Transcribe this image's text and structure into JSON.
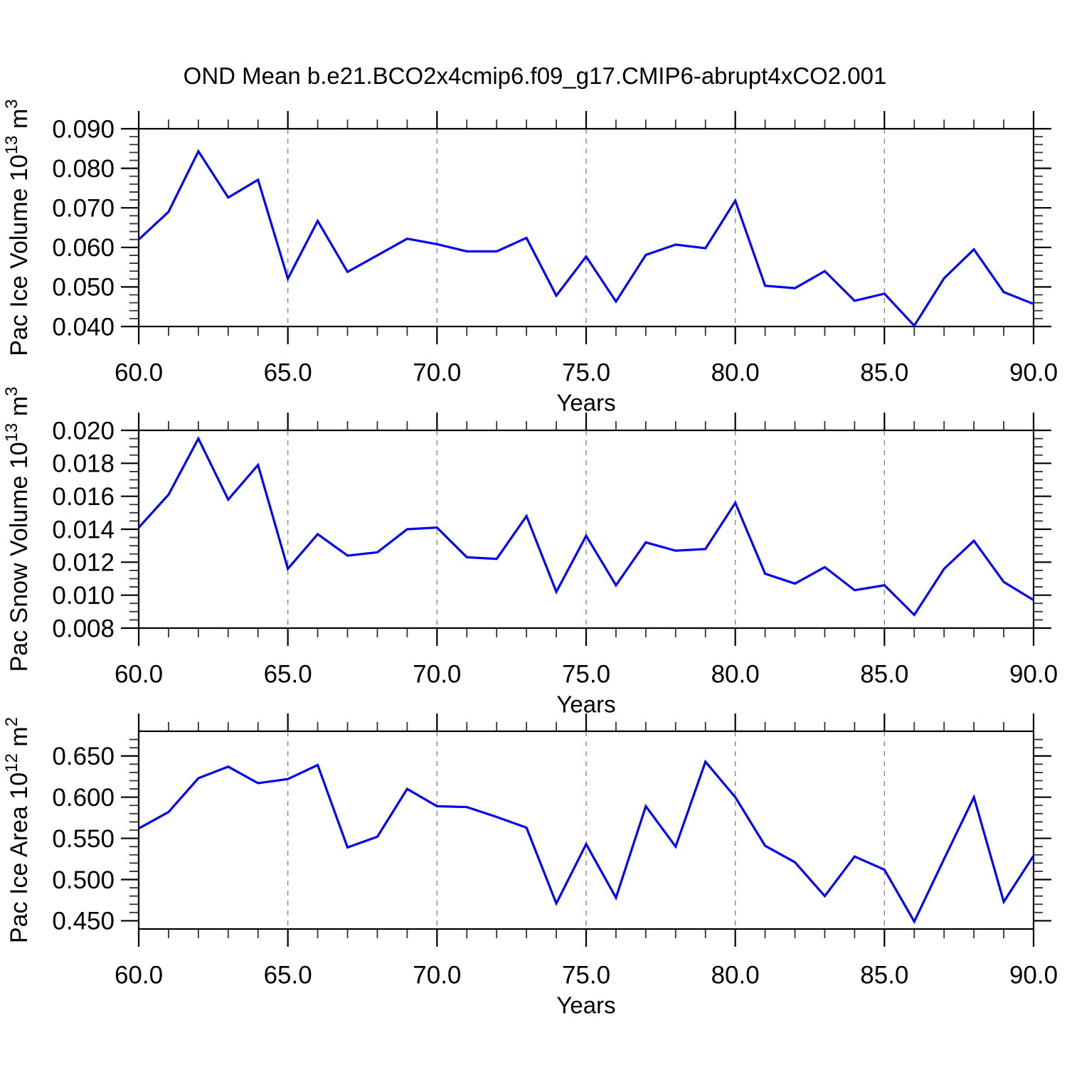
{
  "title": "OND Mean b.e21.BCO2x4cmip6.f09_g17.CMIP6-abrupt4xCO2.001",
  "axis_color": "#000000",
  "grid_color": "#808080",
  "chart_data": [
    {
      "id": "pac-ice-volume",
      "type": "line",
      "xlabel": "Years",
      "ylabel": "Pac Ice Volume 10^13 m^3",
      "ylabel_parts": [
        [
          "Pac Ice Volume 10",
          false
        ],
        [
          "13",
          true
        ],
        [
          " m",
          false
        ],
        [
          "3",
          true
        ]
      ],
      "line_color": "#0000ff",
      "grid": "vertical-dashed",
      "legend": "none",
      "xlim": [
        60,
        90
      ],
      "ylim": [
        0.04,
        0.09
      ],
      "xticks": [
        60,
        65,
        70,
        75,
        80,
        85,
        90
      ],
      "xtick_labels": [
        "60.0",
        "65.0",
        "70.0",
        "75.0",
        "80.0",
        "85.0",
        "90.0"
      ],
      "x_minor_step": 1,
      "yticks": [
        0.04,
        0.05,
        0.06,
        0.07,
        0.08,
        0.09
      ],
      "ytick_labels": [
        "0.040",
        "0.050",
        "0.060",
        "0.070",
        "0.080",
        "0.090"
      ],
      "y_minor_step": 0.002,
      "x": [
        60,
        61,
        62,
        63,
        64,
        65,
        66,
        67,
        68,
        69,
        70,
        71,
        72,
        73,
        74,
        75,
        76,
        77,
        78,
        79,
        80,
        81,
        82,
        83,
        84,
        85,
        86,
        87,
        88,
        89,
        90
      ],
      "values": [
        0.062,
        0.069,
        0.0843,
        0.0726,
        0.0771,
        0.0521,
        0.0667,
        0.0538,
        0.058,
        0.0622,
        0.0608,
        0.059,
        0.059,
        0.0624,
        0.0478,
        0.0577,
        0.0463,
        0.0581,
        0.0607,
        0.0598,
        0.0718,
        0.0503,
        0.0497,
        0.054,
        0.0465,
        0.0483,
        0.0402,
        0.0522,
        0.0595,
        0.0487,
        0.0457
      ]
    },
    {
      "id": "pac-snow-volume",
      "type": "line",
      "xlabel": "Years",
      "ylabel": "Pac Snow Volume 10^13 m^3",
      "ylabel_parts": [
        [
          "Pac Snow Volume 10",
          false
        ],
        [
          "13",
          true
        ],
        [
          " m",
          false
        ],
        [
          "3",
          true
        ]
      ],
      "line_color": "#0000ff",
      "grid": "vertical-dashed",
      "legend": "none",
      "xlim": [
        60,
        90
      ],
      "ylim": [
        0.008,
        0.02
      ],
      "xticks": [
        60,
        65,
        70,
        75,
        80,
        85,
        90
      ],
      "xtick_labels": [
        "60.0",
        "65.0",
        "70.0",
        "75.0",
        "80.0",
        "85.0",
        "90.0"
      ],
      "x_minor_step": 1,
      "yticks": [
        0.008,
        0.01,
        0.012,
        0.014,
        0.016,
        0.018,
        0.02
      ],
      "ytick_labels": [
        "0.008",
        "0.010",
        "0.012",
        "0.014",
        "0.016",
        "0.018",
        "0.020"
      ],
      "y_minor_step": 0.0005,
      "x": [
        60,
        61,
        62,
        63,
        64,
        65,
        66,
        67,
        68,
        69,
        70,
        71,
        72,
        73,
        74,
        75,
        76,
        77,
        78,
        79,
        80,
        81,
        82,
        83,
        84,
        85,
        86,
        87,
        88,
        89,
        90
      ],
      "values": [
        0.0141,
        0.0161,
        0.0195,
        0.0158,
        0.0179,
        0.0116,
        0.0137,
        0.0124,
        0.0126,
        0.014,
        0.0141,
        0.0123,
        0.0122,
        0.0148,
        0.0102,
        0.0136,
        0.0106,
        0.0132,
        0.0127,
        0.0128,
        0.0156,
        0.0113,
        0.0107,
        0.0117,
        0.0103,
        0.0106,
        0.0088,
        0.0116,
        0.0133,
        0.0108,
        0.0097
      ]
    },
    {
      "id": "pac-ice-area",
      "type": "line",
      "xlabel": "Years",
      "ylabel": "Pac Ice Area 10^12 m^2",
      "ylabel_parts": [
        [
          "Pac Ice Area 10",
          false
        ],
        [
          "12",
          true
        ],
        [
          " m",
          false
        ],
        [
          "2",
          true
        ]
      ],
      "line_color": "#0000ff",
      "grid": "vertical-dashed",
      "legend": "none",
      "xlim": [
        60,
        90
      ],
      "ylim": [
        0.44,
        0.68
      ],
      "xticks": [
        60,
        65,
        70,
        75,
        80,
        85,
        90
      ],
      "xtick_labels": [
        "60.0",
        "65.0",
        "70.0",
        "75.0",
        "80.0",
        "85.0",
        "90.0"
      ],
      "x_minor_step": 1,
      "yticks": [
        0.45,
        0.5,
        0.55,
        0.6,
        0.65
      ],
      "ytick_labels": [
        "0.450",
        "0.500",
        "0.550",
        "0.600",
        "0.650"
      ],
      "y_minor_step": 0.01,
      "x": [
        60,
        61,
        62,
        63,
        64,
        65,
        66,
        67,
        68,
        69,
        70,
        71,
        72,
        73,
        74,
        75,
        76,
        77,
        78,
        79,
        80,
        81,
        82,
        83,
        84,
        85,
        86,
        87,
        88,
        89,
        90
      ],
      "values": [
        0.562,
        0.582,
        0.623,
        0.637,
        0.617,
        0.622,
        0.639,
        0.539,
        0.552,
        0.61,
        0.589,
        0.588,
        0.576,
        0.563,
        0.471,
        0.543,
        0.478,
        0.589,
        0.54,
        0.643,
        0.6,
        0.541,
        0.521,
        0.48,
        0.528,
        0.512,
        0.449,
        0.525,
        0.6,
        0.473,
        0.529
      ]
    }
  ]
}
